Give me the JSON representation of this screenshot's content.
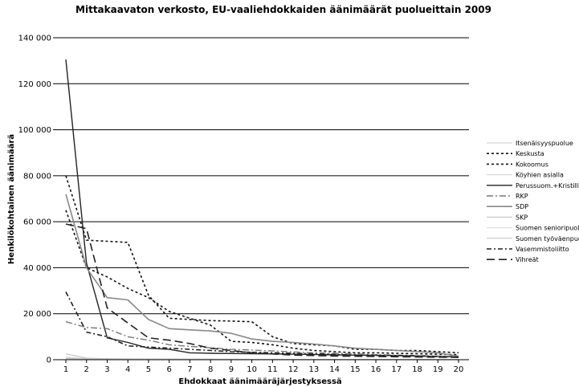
{
  "chart_data": {
    "type": "line",
    "title": "Mittakaavaton verkosto, EU-vaaliehdokkaiden äänimäärät puolueittain 2009",
    "xlabel": "Ehdokkaat äänimääräjärjestyksessä",
    "ylabel": "Henkilökohtainen äänimäärä",
    "x": [
      1,
      2,
      3,
      4,
      5,
      6,
      7,
      8,
      9,
      10,
      11,
      12,
      13,
      14,
      15,
      16,
      17,
      18,
      19,
      20
    ],
    "xlim": [
      1,
      20
    ],
    "ylim": [
      0,
      140000
    ],
    "yticks": [
      0,
      20000,
      40000,
      60000,
      80000,
      100000,
      120000,
      140000
    ],
    "ytick_labels": [
      "0",
      "20 000",
      "40 000",
      "60 000",
      "80 000",
      "100 000",
      "120 000",
      "140 000"
    ],
    "grid": "horizontal",
    "legend_position": "right",
    "series": [
      {
        "name": "Itsenäisyyspuolue",
        "color": "#c8c8c8",
        "dash": "",
        "width": 1,
        "values": [
          700,
          400,
          300,
          250,
          200,
          180,
          160,
          150,
          140,
          130,
          120,
          110,
          100,
          95,
          90,
          85,
          80,
          75,
          70,
          65
        ]
      },
      {
        "name": "Keskusta",
        "color": "#111111",
        "dash": "3,3",
        "width": 1.6,
        "values": [
          80000,
          52000,
          51500,
          51000,
          28000,
          18000,
          17500,
          17000,
          16800,
          16500,
          10000,
          7000,
          6500,
          6000,
          4500,
          4500,
          4000,
          4000,
          3500,
          3000
        ]
      },
      {
        "name": "Kokoomus",
        "color": "#111111",
        "dash": "3,3",
        "width": 1.6,
        "values": [
          65000,
          40000,
          36000,
          31000,
          27000,
          21000,
          18000,
          15000,
          8000,
          7500,
          6500,
          5000,
          4000,
          3500,
          3000,
          3000,
          2800,
          2600,
          2400,
          2200
        ]
      },
      {
        "name": "Köyhien asialla",
        "color": "#d0d0d0",
        "dash": "",
        "width": 1,
        "values": [
          400,
          250,
          200,
          150,
          120,
          100,
          90,
          80,
          70,
          60,
          55,
          50,
          45,
          40,
          35,
          30,
          28,
          26,
          24,
          22
        ]
      },
      {
        "name": "Perussuom.+Kristilliset",
        "color": "#222222",
        "dash": "",
        "width": 1.4,
        "values": [
          130500,
          42000,
          9500,
          7500,
          5000,
          4500,
          3000,
          2800,
          2700,
          2600,
          2500,
          2400,
          2300,
          2100,
          2000,
          1900,
          1800,
          1600,
          1400,
          1200
        ]
      },
      {
        "name": "RKP",
        "color": "#777777",
        "dash": "8,3,2,3",
        "width": 1.4,
        "values": [
          16500,
          14000,
          13500,
          10000,
          8500,
          6500,
          5800,
          5200,
          4500,
          4200,
          3800,
          3400,
          3000,
          2800,
          2500,
          2200,
          2000,
          1800,
          1600,
          1400
        ]
      },
      {
        "name": "SDP",
        "color": "#888888",
        "dash": "",
        "width": 1.6,
        "values": [
          72000,
          40000,
          27000,
          26000,
          17500,
          13500,
          13000,
          12500,
          11500,
          9000,
          8000,
          7500,
          6800,
          6000,
          5000,
          4500,
          4000,
          3500,
          3000,
          1500
        ]
      },
      {
        "name": "SKP",
        "color": "#bbbbbb",
        "dash": "",
        "width": 1,
        "values": [
          2500,
          700,
          500,
          400,
          350,
          300,
          260,
          230,
          200,
          180,
          160,
          150,
          140,
          130,
          120,
          110,
          100,
          90,
          80,
          70
        ]
      },
      {
        "name": "Suomen senioripuolue",
        "color": "#d8d8d8",
        "dash": "",
        "width": 1,
        "values": [
          1200,
          500,
          300,
          250,
          200,
          170,
          150,
          130,
          120,
          110,
          100,
          95,
          90,
          85,
          80,
          75,
          70,
          65,
          60,
          55
        ]
      },
      {
        "name": "Suomen työväenpuolue",
        "color": "#c0c0c0",
        "dash": "",
        "width": 1,
        "values": [
          600,
          300,
          200,
          150,
          120,
          100,
          90,
          80,
          70,
          60,
          55,
          50,
          45,
          40,
          35,
          30,
          28,
          26,
          24,
          22
        ]
      },
      {
        "name": "Vasemmistoliitto",
        "color": "#222222",
        "dash": "6,3,2,3",
        "width": 1.6,
        "values": [
          29500,
          12000,
          10000,
          6000,
          5500,
          5000,
          4500,
          4000,
          3500,
          3200,
          3000,
          2800,
          2500,
          2300,
          2000,
          1900,
          1800,
          1600,
          1400,
          1200
        ]
      },
      {
        "name": "Vihreät",
        "color": "#222222",
        "dash": "10,5",
        "width": 1.6,
        "values": [
          59000,
          57000,
          22500,
          16000,
          9500,
          8500,
          7000,
          5000,
          4000,
          3000,
          2500,
          2000,
          1800,
          1600,
          1500,
          1400,
          1300,
          1200,
          1100,
          1000
        ]
      }
    ]
  }
}
